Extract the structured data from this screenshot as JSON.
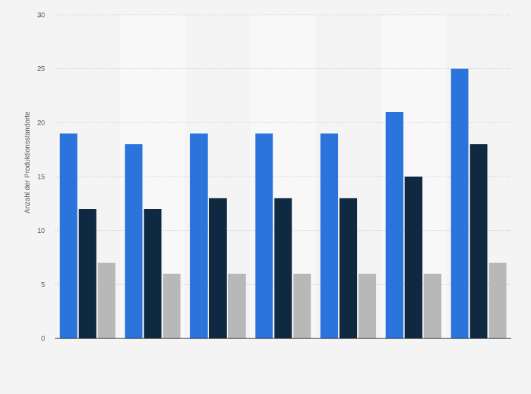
{
  "chart_data": {
    "type": "bar",
    "ylabel": "Anzahl der Produktionsstandorte",
    "ylim": [
      0,
      30
    ],
    "yticks": [
      0,
      5,
      10,
      15,
      20,
      25,
      30
    ],
    "grid": true,
    "categories": [
      "",
      "",
      "",
      "",
      "",
      "",
      ""
    ],
    "series": [
      {
        "values": [
          19,
          18,
          19,
          19,
          19,
          21,
          25
        ]
      },
      {
        "values": [
          12,
          12,
          13,
          13,
          13,
          15,
          18
        ]
      },
      {
        "values": [
          7,
          6,
          6,
          6,
          6,
          6,
          7
        ]
      }
    ],
    "colors": [
      "#2a74db",
      "#0f2a40",
      "#b8b8b8"
    ],
    "band_colors": [
      "#f4f4f5",
      "#f8f8f8"
    ]
  }
}
